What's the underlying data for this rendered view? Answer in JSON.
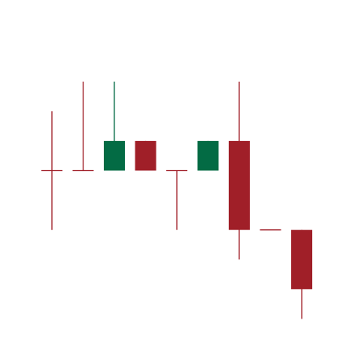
{
  "chart_data": {
    "type": "candlestick",
    "title": "",
    "xlabel": "",
    "ylabel": "",
    "axes_visible": false,
    "grid": false,
    "legend": "none",
    "ylim": [
      0,
      10
    ],
    "colors": {
      "up": "#036b44",
      "down": "#a01f28",
      "background": "#ffffff"
    },
    "candles": [
      {
        "open": 5,
        "high": 7,
        "low": 3,
        "close": 5
      },
      {
        "open": 5,
        "high": 8,
        "low": 5,
        "close": 5
      },
      {
        "open": 5,
        "high": 8,
        "low": 5,
        "close": 6
      },
      {
        "open": 6,
        "high": 6,
        "low": 5,
        "close": 5
      },
      {
        "open": 5,
        "high": 5,
        "low": 3,
        "close": 5
      },
      {
        "open": 5,
        "high": 6,
        "low": 5,
        "close": 6
      },
      {
        "open": 6,
        "high": 8,
        "low": 2,
        "close": 3
      },
      {
        "open": 3,
        "high": 3,
        "low": 3,
        "close": 3
      },
      {
        "open": 3,
        "high": 3,
        "low": 0,
        "close": 1
      }
    ]
  }
}
